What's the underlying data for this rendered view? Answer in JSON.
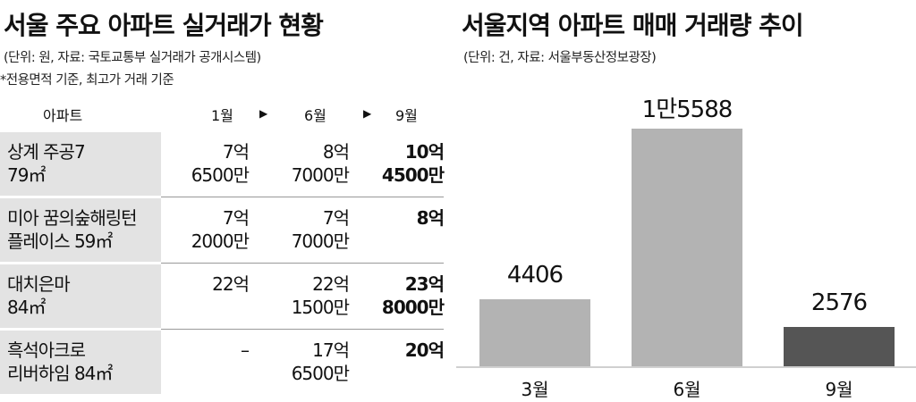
{
  "table": {
    "title": "서울 주요 아파트 실거래가 현황",
    "source": "(단위: 원, 자료: 국토교통부 실거래가 공개시스템)",
    "note": "*전용면적 기준, 최고가 거래 기준",
    "headers": [
      "아파트",
      "1월",
      "6월",
      "9월"
    ],
    "arrow": "▶",
    "rows": [
      {
        "name": [
          "상계 주공7",
          "79㎡"
        ],
        "jan": [
          "7억",
          "6500만"
        ],
        "jun": [
          "8억",
          "7000만"
        ],
        "sep": [
          "10억",
          "4500만"
        ]
      },
      {
        "name": [
          "미아 꿈의숲해링턴",
          "플레이스 59㎡"
        ],
        "jan": [
          "7억",
          "2000만"
        ],
        "jun": [
          "7억",
          "7000만"
        ],
        "sep": [
          "",
          "8억"
        ]
      },
      {
        "name": [
          "대치은마",
          "84㎡"
        ],
        "jan": [
          "",
          "22억"
        ],
        "jun": [
          "22억",
          "1500만"
        ],
        "sep": [
          "23억",
          "8000만"
        ]
      },
      {
        "name": [
          "흑석아크로",
          "리버하임 84㎡"
        ],
        "jan": [
          "",
          "–"
        ],
        "jun": [
          "17억",
          "6500만"
        ],
        "sep": [
          "",
          "20억"
        ]
      }
    ]
  },
  "chart_data": {
    "type": "bar",
    "title": "서울지역 아파트 매매 거래량 추이",
    "subtitle": "(단위: 건, 자료: 서울부동산정보광장)",
    "categories": [
      "3월",
      "6월",
      "9월"
    ],
    "values": [
      4406,
      15588,
      2576
    ],
    "value_labels": [
      "4406",
      "1만5588",
      "2576"
    ],
    "bar_colors": [
      "#b3b3b3",
      "#b3b3b3",
      "#555555"
    ],
    "ylim": [
      0,
      17000
    ],
    "xlabel": "",
    "ylabel": ""
  }
}
